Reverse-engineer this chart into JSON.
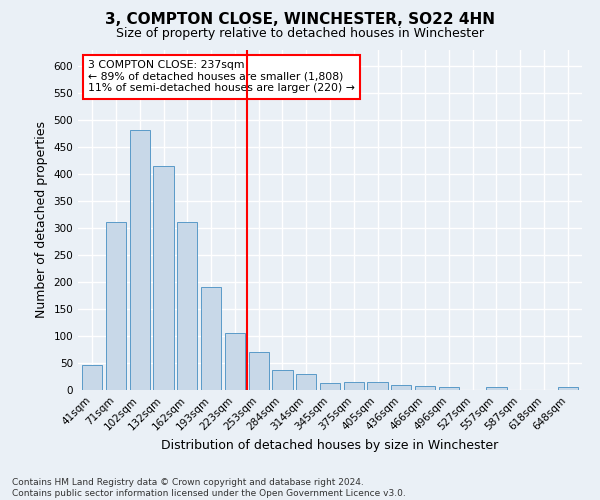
{
  "title": "3, COMPTON CLOSE, WINCHESTER, SO22 4HN",
  "subtitle": "Size of property relative to detached houses in Winchester",
  "xlabel": "Distribution of detached houses by size in Winchester",
  "ylabel": "Number of detached properties",
  "bar_labels": [
    "41sqm",
    "71sqm",
    "102sqm",
    "132sqm",
    "162sqm",
    "193sqm",
    "223sqm",
    "253sqm",
    "284sqm",
    "314sqm",
    "345sqm",
    "375sqm",
    "405sqm",
    "436sqm",
    "466sqm",
    "496sqm",
    "527sqm",
    "557sqm",
    "587sqm",
    "618sqm",
    "648sqm"
  ],
  "bar_values": [
    46,
    311,
    481,
    415,
    311,
    191,
    105,
    70,
    37,
    30,
    13,
    15,
    15,
    10,
    7,
    5,
    0,
    6,
    0,
    0,
    6
  ],
  "bar_color": "#c8d8e8",
  "bar_edge_color": "#5a9ac8",
  "vline_x_index": 6.5,
  "vline_color": "red",
  "annotation_text": "3 COMPTON CLOSE: 237sqm\n← 89% of detached houses are smaller (1,808)\n11% of semi-detached houses are larger (220) →",
  "annotation_box_color": "white",
  "annotation_box_edge_color": "red",
  "ylim": [
    0,
    630
  ],
  "yticks": [
    0,
    50,
    100,
    150,
    200,
    250,
    300,
    350,
    400,
    450,
    500,
    550,
    600
  ],
  "footer_text": "Contains HM Land Registry data © Crown copyright and database right 2024.\nContains public sector information licensed under the Open Government Licence v3.0.",
  "background_color": "#eaf0f6",
  "grid_color": "white",
  "title_fontsize": 11,
  "subtitle_fontsize": 9,
  "axis_label_fontsize": 9,
  "tick_fontsize": 7.5,
  "footer_fontsize": 6.5
}
